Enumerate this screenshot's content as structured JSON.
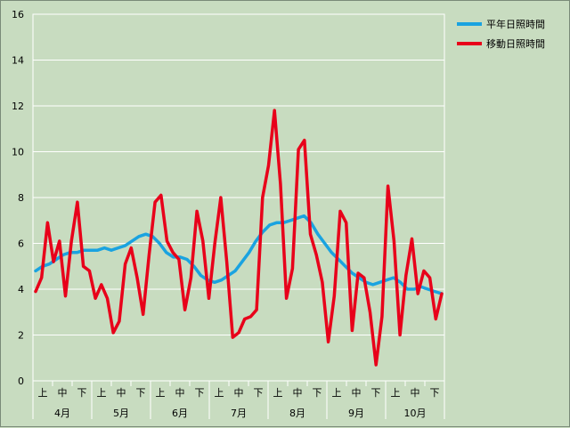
{
  "chart_data": {
    "type": "line",
    "ylim": [
      0,
      16
    ],
    "y_ticks": [
      "0",
      "2",
      "4",
      "6",
      "8",
      "10",
      "12",
      "14",
      "16"
    ],
    "grid": true,
    "legend_position": "top-right",
    "x_sub_labels": [
      "上",
      "中",
      "下"
    ],
    "x_month_labels": [
      "4月",
      "5月",
      "6月",
      "7月",
      "8月",
      "9月",
      "10月"
    ],
    "series": [
      {
        "name": "平年日照時間",
        "color": "#1aa3e0",
        "values": [
          4.8,
          5.0,
          5.1,
          5.3,
          5.5,
          5.6,
          5.6,
          5.7,
          5.7,
          5.7,
          5.8,
          5.7,
          5.8,
          5.9,
          6.1,
          6.3,
          6.4,
          6.3,
          6.0,
          5.6,
          5.4,
          5.4,
          5.3,
          5.0,
          4.6,
          4.4,
          4.3,
          4.4,
          4.6,
          4.8,
          5.2,
          5.6,
          6.1,
          6.5,
          6.8,
          6.9,
          6.9,
          7.0,
          7.1,
          7.2,
          6.9,
          6.4,
          6.0,
          5.6,
          5.3,
          5.0,
          4.7,
          4.5,
          4.3,
          4.2,
          4.3,
          4.4,
          4.5,
          4.3,
          4.0,
          4.0,
          4.1,
          4.0,
          3.9,
          3.8
        ]
      },
      {
        "name": "移動日照時間",
        "color": "#e8001a",
        "values": [
          3.9,
          4.5,
          6.9,
          5.2,
          6.1,
          3.7,
          6.1,
          7.8,
          5.0,
          4.8,
          3.6,
          4.2,
          3.6,
          2.1,
          2.6,
          5.1,
          5.8,
          4.5,
          2.9,
          5.5,
          7.8,
          8.1,
          6.1,
          5.6,
          5.3,
          3.1,
          4.5,
          7.4,
          6.1,
          3.6,
          6.0,
          8.0,
          5.2,
          1.9,
          2.1,
          2.7,
          2.8,
          3.1,
          8.0,
          9.4,
          11.8,
          8.6,
          3.6,
          4.9,
          10.1,
          10.5,
          6.4,
          5.5,
          4.3,
          1.7,
          3.7,
          7.4,
          6.9,
          2.2,
          4.7,
          4.5,
          3.0,
          0.7,
          2.8,
          8.5,
          6.1,
          2.0,
          4.6,
          6.2,
          3.8,
          4.8,
          4.5,
          2.7,
          3.8
        ]
      }
    ]
  }
}
